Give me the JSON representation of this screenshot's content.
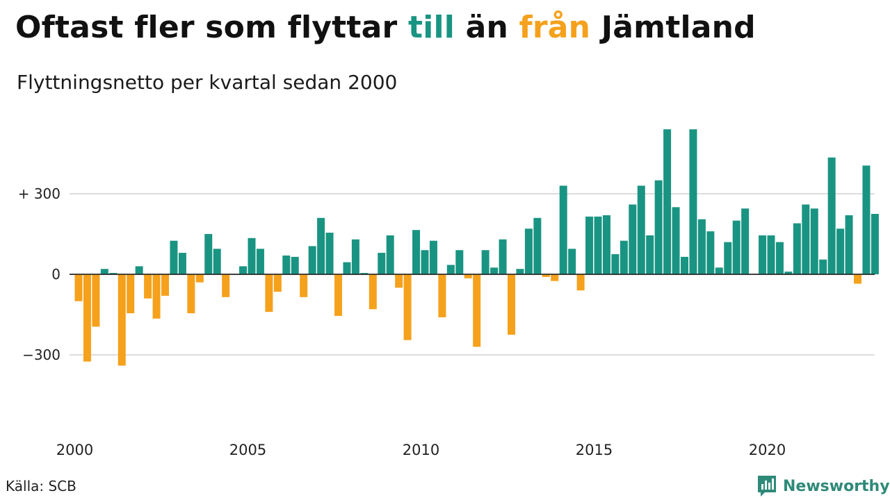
{
  "title": {
    "part1": "Oftast fler som flyttar ",
    "till": "till",
    "part2": " än ",
    "fran": "från",
    "part3": " Jämtland"
  },
  "subtitle": "Flyttningsnetto per kvartal sedan 2000",
  "source": "Källa: SCB",
  "brand": {
    "name": "Newsworthy",
    "icon": "newsworthy-logo-icon",
    "color": "#2e8a78"
  },
  "colors": {
    "positive": "#1a9482",
    "negative": "#f5a11c",
    "grid": "#dcdcdc",
    "zero_line": "#222222"
  },
  "chart_data": {
    "type": "bar",
    "title": "",
    "xlabel": "",
    "ylabel": "",
    "ylim": [
      -470,
      560
    ],
    "grid": true,
    "legend": "none",
    "x_start": "2000 Q1",
    "x_ticks": [
      "2000",
      "2005",
      "2010",
      "2015",
      "2020"
    ],
    "y_ticks": [
      {
        "value": 300,
        "label": "+ 300"
      },
      {
        "value": 0,
        "label": "0"
      },
      {
        "value": -300,
        "label": "−300"
      }
    ],
    "values": [
      -100,
      -325,
      -195,
      20,
      5,
      -340,
      -145,
      30,
      -90,
      -165,
      -80,
      125,
      80,
      -145,
      -30,
      150,
      95,
      -85,
      0,
      30,
      135,
      95,
      -140,
      -65,
      70,
      65,
      -85,
      105,
      210,
      155,
      -155,
      45,
      130,
      5,
      -130,
      80,
      145,
      -50,
      -245,
      165,
      90,
      125,
      -160,
      35,
      90,
      -15,
      -270,
      90,
      25,
      130,
      -225,
      20,
      170,
      210,
      -10,
      -25,
      330,
      95,
      -60,
      215,
      215,
      220,
      75,
      125,
      260,
      330,
      145,
      350,
      540,
      250,
      65,
      540,
      205,
      160,
      25,
      120,
      200,
      245,
      0,
      145,
      145,
      120,
      10,
      190,
      260,
      245,
      55,
      435,
      170,
      220,
      -35,
      405,
      225
    ]
  }
}
